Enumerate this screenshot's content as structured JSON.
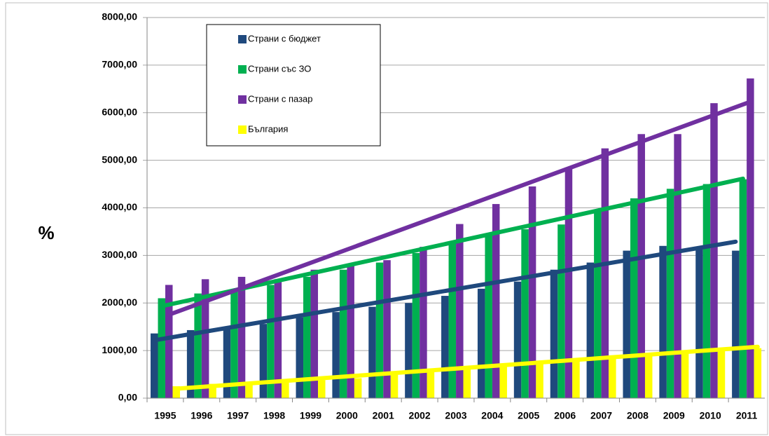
{
  "chart_data": {
    "type": "bar",
    "y_label": "%",
    "categories": [
      "1995",
      "1996",
      "1997",
      "1998",
      "1999",
      "2000",
      "2001",
      "2002",
      "2003",
      "2004",
      "2005",
      "2006",
      "2007",
      "2008",
      "2009",
      "2010",
      "2011"
    ],
    "series": [
      {
        "name": "Страни с бюджет",
        "color": "#1f497d",
        "values": [
          1360,
          1430,
          1480,
          1560,
          1700,
          1810,
          1920,
          2000,
          2150,
          2300,
          2450,
          2700,
          2850,
          3100,
          3200,
          3180,
          3100
        ]
      },
      {
        "name": "Страни със ЗО",
        "color": "#00b050",
        "values": [
          2100,
          2200,
          2250,
          2380,
          2550,
          2700,
          2850,
          3050,
          3250,
          3450,
          3550,
          3650,
          3950,
          4200,
          4400,
          4500,
          4600
        ]
      },
      {
        "name": "Страни с пазар",
        "color": "#7030a0",
        "values": [
          2380,
          2500,
          2550,
          2500,
          2700,
          2830,
          2900,
          3180,
          3660,
          4080,
          4450,
          4850,
          5250,
          5550,
          5550,
          6200,
          6720
        ]
      },
      {
        "name": "България",
        "color": "#ffff00",
        "values": [
          250,
          300,
          300,
          330,
          380,
          420,
          500,
          580,
          650,
          680,
          750,
          820,
          900,
          950,
          1000,
          1000,
          1050
        ]
      }
    ],
    "trendlines": true,
    "ylim": [
      0,
      8000
    ],
    "yticks": [
      {
        "value": 0,
        "label": "0,00"
      },
      {
        "value": 1000,
        "label": "1000,00"
      },
      {
        "value": 2000,
        "label": "2000,00"
      },
      {
        "value": 3000,
        "label": "3000,00"
      },
      {
        "value": 4000,
        "label": "4000,00"
      },
      {
        "value": 5000,
        "label": "5000,00"
      },
      {
        "value": 6000,
        "label": "6000,00"
      },
      {
        "value": 7000,
        "label": "7000,00"
      },
      {
        "value": 8000,
        "label": "8000,00"
      }
    ],
    "grid": true
  }
}
